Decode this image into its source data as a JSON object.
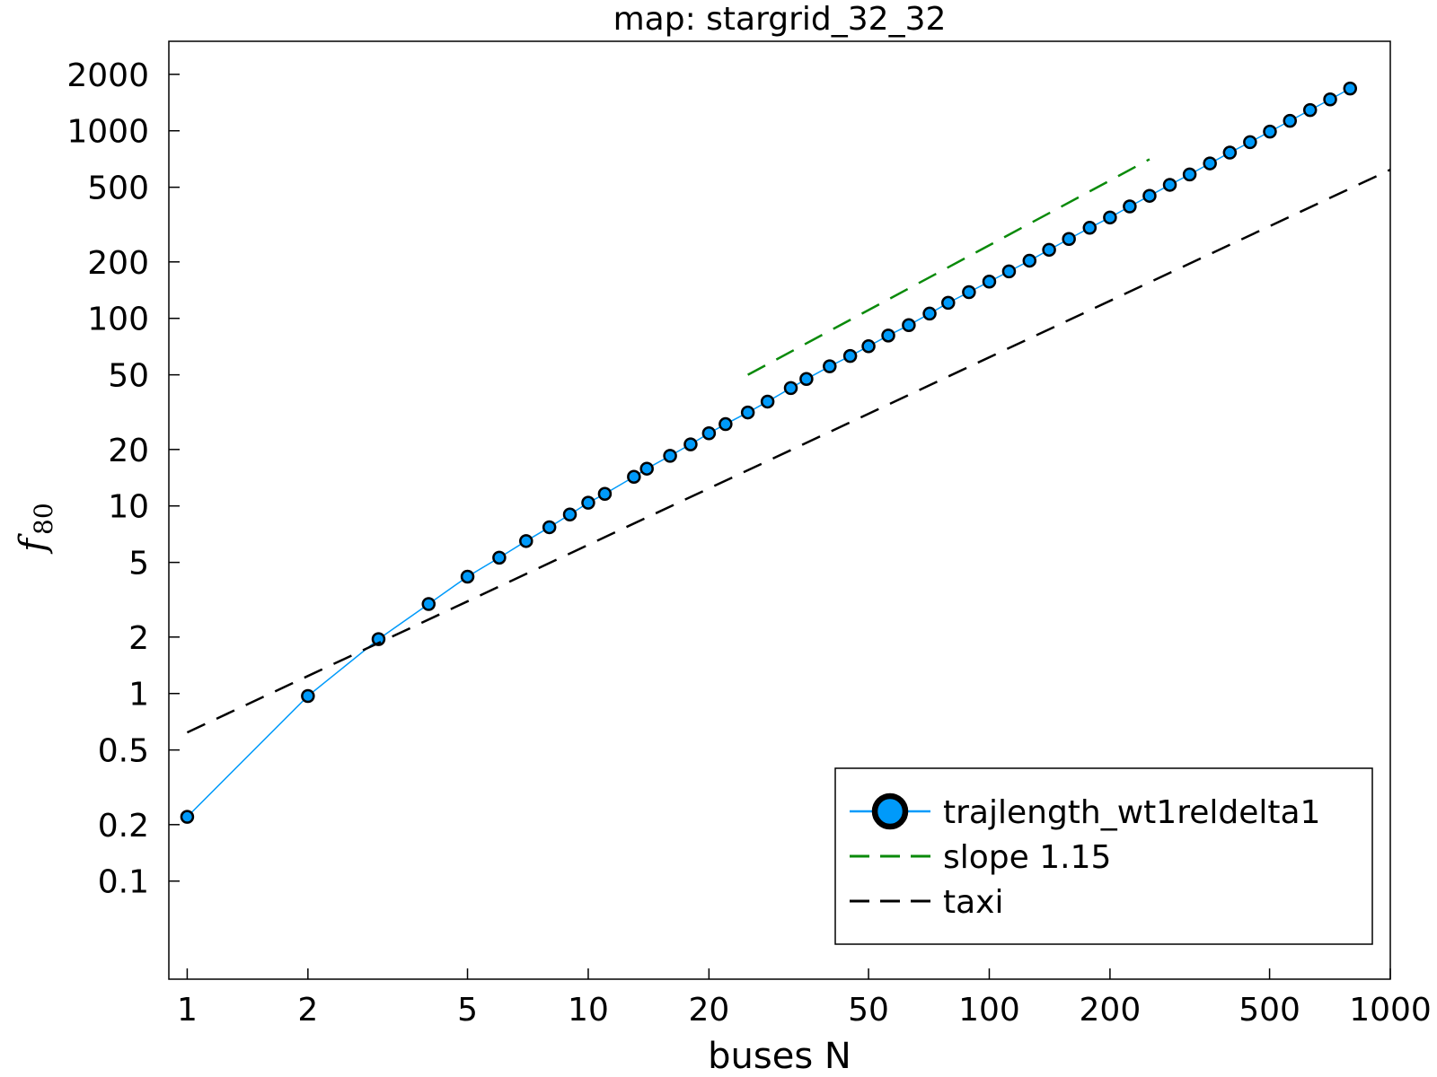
{
  "chart_data": {
    "type": "line",
    "title": "map: stargrid_32_32",
    "xlabel": "buses N",
    "ylabel": "f",
    "ylabel_subscript": "80",
    "xscale": "log",
    "yscale": "log",
    "xlim": [
      0.9,
      1000
    ],
    "ylim": [
      0.03,
      3000
    ],
    "xticks": [
      1,
      2,
      5,
      10,
      20,
      50,
      100,
      200,
      500,
      1000
    ],
    "xtick_labels": [
      "1",
      "2",
      "5",
      "10",
      "20",
      "50",
      "100",
      "200",
      "500",
      "1000"
    ],
    "yticks": [
      0.1,
      0.2,
      0.5,
      1,
      2,
      5,
      10,
      20,
      50,
      100,
      200,
      500,
      1000,
      2000
    ],
    "ytick_labels": [
      "0.1",
      "0.2",
      "0.5",
      "1",
      "2",
      "5",
      "10",
      "20",
      "50",
      "100",
      "200",
      "500",
      "1000",
      "2000"
    ],
    "grid": false,
    "legend_position": "bottom-right",
    "series": [
      {
        "name": "trajlength_wt1reldelta1",
        "style": "line-markers",
        "color": "#009AFA",
        "marker_edge": "#000000",
        "x": [
          1,
          2,
          3,
          4,
          5,
          6,
          7,
          8,
          9,
          10,
          11,
          13,
          14,
          16,
          18,
          20,
          22,
          25,
          28,
          32,
          35,
          40,
          45,
          50,
          56,
          63,
          71,
          79,
          89,
          100,
          112,
          126,
          141,
          158,
          178,
          200,
          224,
          251,
          282,
          316,
          355,
          398,
          447,
          501,
          562,
          631,
          708,
          794
        ],
        "y": [
          0.22,
          0.97,
          1.95,
          3.0,
          4.2,
          5.3,
          6.5,
          7.7,
          9.0,
          10.4,
          11.6,
          14.3,
          15.8,
          18.5,
          21.3,
          24.4,
          27.3,
          31.5,
          36,
          42.5,
          47.5,
          55.5,
          63,
          71,
          81,
          92,
          106,
          121,
          138,
          157,
          178,
          203,
          232,
          265,
          304,
          345,
          395,
          450,
          515,
          585,
          670,
          765,
          870,
          990,
          1130,
          1290,
          1470,
          1680
        ]
      },
      {
        "name": "slope 1.15",
        "style": "dashed",
        "color": "#0A8A0A",
        "x": [
          25,
          251
        ],
        "y": [
          50,
          705
        ]
      },
      {
        "name": "taxi",
        "style": "dashed",
        "color": "#000000",
        "x": [
          1,
          1000
        ],
        "y": [
          0.62,
          620
        ]
      }
    ]
  }
}
